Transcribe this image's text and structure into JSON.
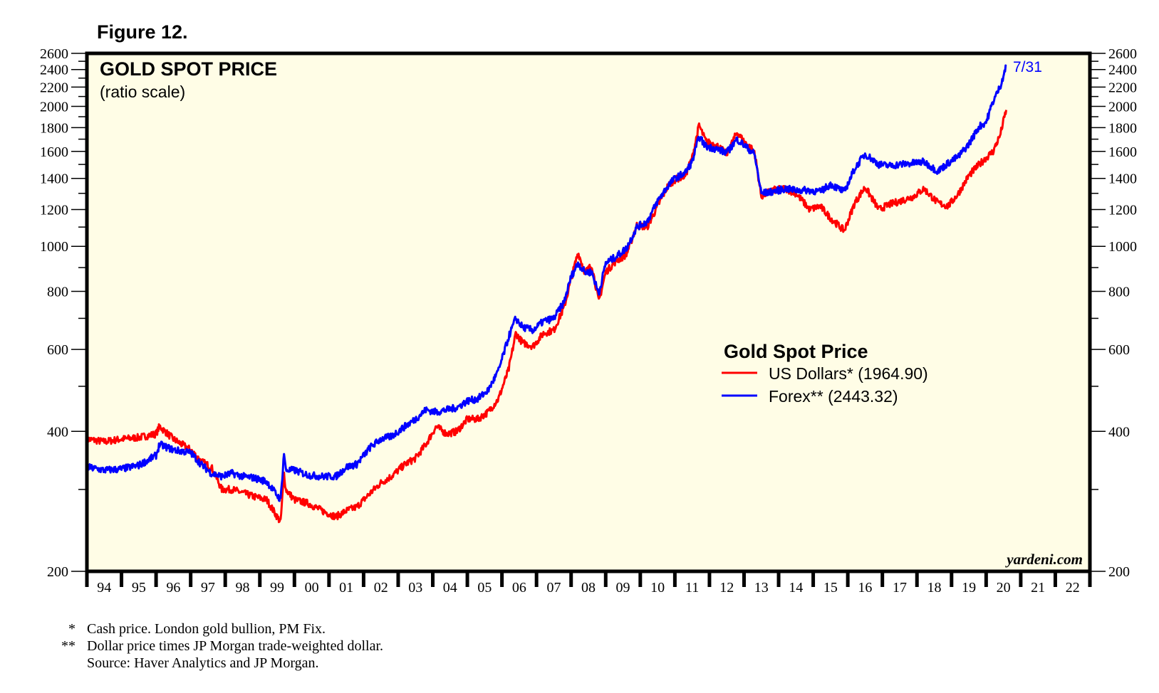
{
  "figure_label": "Figure 12.",
  "chart_data": {
    "type": "line",
    "title": "GOLD SPOT PRICE",
    "subtitle": "(ratio scale)",
    "xlabel": "",
    "ylabel": "",
    "y_scale": "log",
    "ylim": [
      200,
      2600
    ],
    "xlim": [
      1994,
      2023
    ],
    "y_ticks_major": [
      200,
      400,
      600,
      800,
      1000,
      1200,
      1400,
      1600,
      1800,
      2000,
      2200,
      2400,
      2600
    ],
    "y_ticks_labeled": [
      "200",
      "400",
      "600",
      "800",
      "1000",
      "1200",
      "1400",
      "1600",
      "1800",
      "2000",
      "2200",
      "2400",
      "2600"
    ],
    "y_ticks_minor": [
      300,
      500,
      700,
      900,
      1100,
      1300,
      1500,
      1700,
      1900,
      2100,
      2300,
      2500
    ],
    "x_tick_labels": [
      "94",
      "95",
      "96",
      "97",
      "98",
      "99",
      "00",
      "01",
      "02",
      "03",
      "04",
      "05",
      "06",
      "07",
      "08",
      "09",
      "10",
      "11",
      "12",
      "13",
      "14",
      "15",
      "16",
      "17",
      "18",
      "19",
      "20",
      "21",
      "22"
    ],
    "legend_title": "Gold Spot Price",
    "legend_position": "center-right",
    "end_date_label": "7/31",
    "watermark": "yardeni.com",
    "grid": false,
    "series": [
      {
        "name": "US Dollars* (1964.90)",
        "color": "#ff0000",
        "last_value": 1964.9,
        "x": [
          1994.0,
          1994.5,
          1995.0,
          1995.5,
          1996.0,
          1996.1,
          1996.5,
          1997.0,
          1997.3,
          1997.6,
          1997.9,
          1998.2,
          1998.5,
          1998.8,
          1999.2,
          1999.6,
          1999.7,
          1999.75,
          2000.0,
          2000.4,
          2000.8,
          2001.2,
          2001.5,
          2001.8,
          2002.2,
          2002.5,
          2002.8,
          2003.2,
          2003.5,
          2003.8,
          2004.1,
          2004.4,
          2004.7,
          2005.0,
          2005.3,
          2005.6,
          2005.9,
          2006.2,
          2006.4,
          2006.6,
          2006.9,
          2007.2,
          2007.5,
          2007.8,
          2008.0,
          2008.2,
          2008.4,
          2008.6,
          2008.8,
          2009.0,
          2009.3,
          2009.6,
          2009.9,
          2010.2,
          2010.5,
          2010.8,
          2011.0,
          2011.3,
          2011.5,
          2011.7,
          2011.9,
          2012.2,
          2012.5,
          2012.8,
          2013.0,
          2013.3,
          2013.5,
          2013.8,
          2014.2,
          2014.5,
          2014.9,
          2015.2,
          2015.5,
          2015.9,
          2016.2,
          2016.5,
          2016.9,
          2017.2,
          2017.5,
          2017.9,
          2018.2,
          2018.6,
          2018.9,
          2019.2,
          2019.5,
          2019.8,
          2020.0,
          2020.2,
          2020.4,
          2020.58
        ],
        "values": [
          385,
          380,
          385,
          388,
          395,
          410,
          385,
          365,
          345,
          335,
          300,
          300,
          295,
          290,
          285,
          255,
          325,
          300,
          285,
          280,
          270,
          262,
          270,
          275,
          295,
          310,
          320,
          340,
          350,
          375,
          410,
          395,
          400,
          425,
          425,
          440,
          470,
          545,
          650,
          620,
          610,
          650,
          660,
          740,
          850,
          970,
          880,
          910,
          760,
          880,
          930,
          960,
          1110,
          1100,
          1220,
          1350,
          1390,
          1420,
          1550,
          1820,
          1680,
          1650,
          1580,
          1760,
          1680,
          1600,
          1280,
          1320,
          1330,
          1300,
          1200,
          1220,
          1150,
          1080,
          1240,
          1340,
          1200,
          1230,
          1250,
          1280,
          1330,
          1240,
          1220,
          1300,
          1420,
          1500,
          1550,
          1600,
          1730,
          1965
        ]
      },
      {
        "name": "Forex** (2443.32)",
        "color": "#0000ff",
        "last_value": 2443.32,
        "x": [
          1994.0,
          1994.5,
          1995.0,
          1995.5,
          1996.0,
          1996.1,
          1996.5,
          1997.0,
          1997.3,
          1997.6,
          1997.9,
          1998.2,
          1998.5,
          1998.8,
          1999.2,
          1999.6,
          1999.7,
          1999.75,
          2000.0,
          2000.4,
          2000.8,
          2001.2,
          2001.5,
          2001.8,
          2002.2,
          2002.5,
          2002.8,
          2003.2,
          2003.5,
          2003.8,
          2004.1,
          2004.4,
          2004.7,
          2005.0,
          2005.3,
          2005.6,
          2005.9,
          2006.2,
          2006.4,
          2006.6,
          2006.9,
          2007.2,
          2007.5,
          2007.8,
          2008.0,
          2008.2,
          2008.4,
          2008.6,
          2008.8,
          2009.0,
          2009.3,
          2009.6,
          2009.9,
          2010.2,
          2010.5,
          2010.8,
          2011.0,
          2011.3,
          2011.5,
          2011.7,
          2011.9,
          2012.2,
          2012.5,
          2012.8,
          2013.0,
          2013.3,
          2013.5,
          2013.8,
          2014.2,
          2014.5,
          2014.9,
          2015.2,
          2015.5,
          2015.9,
          2016.2,
          2016.5,
          2016.9,
          2017.2,
          2017.5,
          2017.9,
          2018.2,
          2018.6,
          2018.9,
          2019.2,
          2019.5,
          2019.8,
          2020.0,
          2020.2,
          2020.4,
          2020.58
        ],
        "values": [
          335,
          330,
          332,
          338,
          355,
          375,
          365,
          360,
          340,
          325,
          320,
          325,
          320,
          318,
          312,
          285,
          360,
          330,
          330,
          322,
          320,
          320,
          335,
          340,
          370,
          385,
          390,
          410,
          425,
          445,
          440,
          445,
          450,
          465,
          470,
          490,
          540,
          640,
          700,
          670,
          660,
          690,
          700,
          760,
          860,
          920,
          880,
          880,
          790,
          920,
          950,
          990,
          1100,
          1130,
          1250,
          1350,
          1400,
          1440,
          1520,
          1720,
          1640,
          1620,
          1590,
          1700,
          1650,
          1580,
          1300,
          1310,
          1330,
          1320,
          1320,
          1310,
          1360,
          1310,
          1470,
          1580,
          1500,
          1490,
          1500,
          1510,
          1520,
          1450,
          1510,
          1560,
          1660,
          1810,
          1850,
          2050,
          2200,
          2443
        ]
      }
    ]
  },
  "footnotes": [
    {
      "mark": "*",
      "text": "Cash price. London gold bullion, PM Fix."
    },
    {
      "mark": "**",
      "text": "Dollar price times JP Morgan trade-weighted dollar."
    },
    {
      "mark": "",
      "text": "Source: Haver Analytics and JP Morgan."
    }
  ]
}
